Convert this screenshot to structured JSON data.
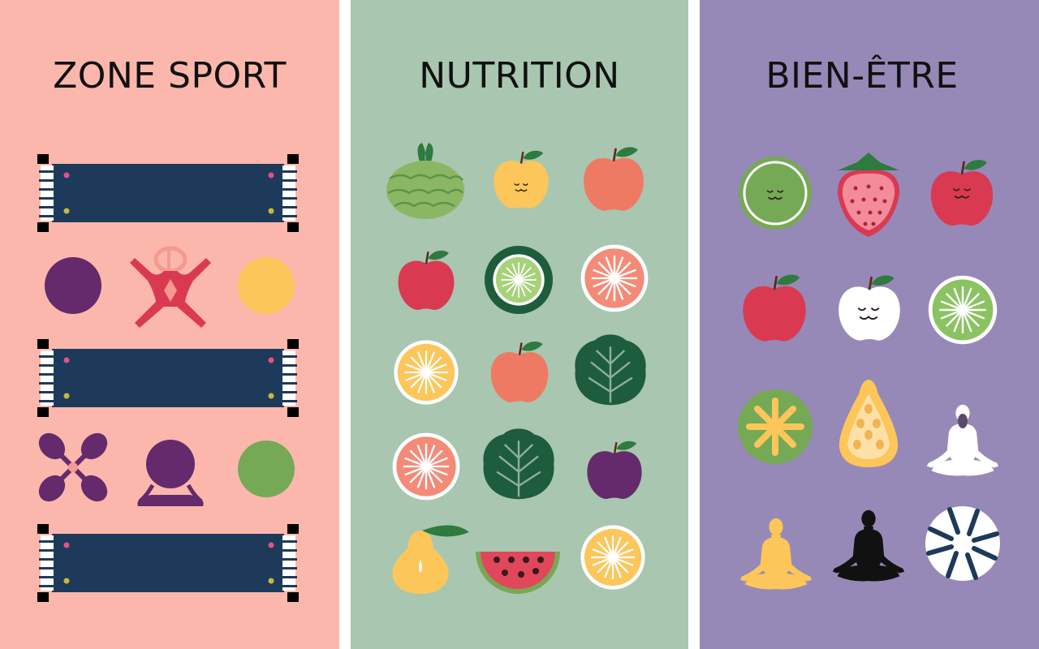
{
  "panels": [
    {
      "title": "ZONE SPORT",
      "background": "#fbb7ac",
      "icons": [
        "exercise-mat",
        "purple-ball",
        "stretching-figure",
        "yellow-ball",
        "exercise-mat",
        "flower-figure",
        "purple-ball-figure",
        "green-ball",
        "exercise-mat"
      ]
    },
    {
      "title": "NUTRITION",
      "background": "#a9c6b0",
      "icons": [
        "cabbage",
        "smiling-apple",
        "apple",
        "red-apple",
        "lime-slice",
        "grapefruit-slice",
        "orange-slice",
        "apple",
        "lettuce",
        "grapefruit-slice",
        "lettuce",
        "plum",
        "pear",
        "watermelon-slice",
        "orange-slice"
      ]
    },
    {
      "title": "BIEN-ÊTRE",
      "background": "#9689b7",
      "icons": [
        "smiling-lime",
        "strawberry",
        "smiling-tomato",
        "red-apple",
        "smiling-white-apple",
        "lime-slice",
        "kiwi-slice",
        "papaya",
        "meditating-person",
        "meditating-person",
        "meditating-person",
        "blue-white-wheel"
      ]
    }
  ],
  "colors": {
    "navy": "#1d3a5a",
    "red": "#d93a52",
    "purple": "#652a6c",
    "yellow": "#fcc65a",
    "green": "#76a955",
    "coral": "#ef7a64",
    "dark_green": "#1e5c3e"
  }
}
